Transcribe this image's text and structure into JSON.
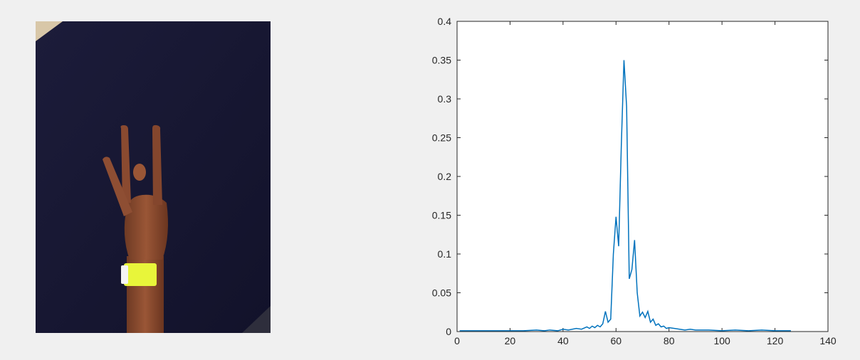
{
  "photo": {
    "subject": "hand-gesture",
    "colors": {
      "backdrop": "#161631",
      "skin": "#8a4a30",
      "wristband": "#e8f53a"
    }
  },
  "chart_data": {
    "type": "line",
    "title": "",
    "xlabel": "",
    "ylabel": "",
    "xlim": [
      0,
      140
    ],
    "ylim": [
      0,
      0.4
    ],
    "xticks": [
      0,
      20,
      40,
      60,
      80,
      100,
      120,
      140
    ],
    "yticks": [
      0,
      0.05,
      0.1,
      0.15,
      0.2,
      0.25,
      0.3,
      0.35,
      0.4
    ],
    "xtick_labels": [
      "0",
      "20",
      "40",
      "60",
      "80",
      "100",
      "120",
      "140"
    ],
    "ytick_labels": [
      "0",
      "0.05",
      "0.1",
      "0.15",
      "0.2",
      "0.25",
      "0.3",
      "0.35",
      "0.4"
    ],
    "grid": false,
    "legend": "none",
    "line_color": "#0072bd",
    "series": [
      {
        "x": [
          1,
          5,
          10,
          15,
          20,
          25,
          30,
          33,
          35,
          38,
          40,
          42,
          45,
          47,
          49,
          50,
          51,
          52,
          53,
          54,
          55,
          56,
          57,
          58,
          59,
          60,
          61,
          62,
          63,
          64,
          65,
          66,
          67,
          68,
          69,
          70,
          71,
          72,
          73,
          74,
          75,
          76,
          77,
          78,
          79,
          80,
          82,
          84,
          86,
          88,
          90,
          95,
          100,
          105,
          110,
          115,
          120,
          125,
          126
        ],
        "y": [
          0.001,
          0.001,
          0.001,
          0.001,
          0.001,
          0.001,
          0.002,
          0.001,
          0.002,
          0.001,
          0.003,
          0.002,
          0.004,
          0.003,
          0.006,
          0.004,
          0.007,
          0.005,
          0.008,
          0.006,
          0.01,
          0.026,
          0.012,
          0.016,
          0.1,
          0.148,
          0.11,
          0.24,
          0.35,
          0.29,
          0.068,
          0.08,
          0.118,
          0.05,
          0.02,
          0.025,
          0.018,
          0.026,
          0.012,
          0.016,
          0.008,
          0.01,
          0.006,
          0.007,
          0.004,
          0.005,
          0.004,
          0.003,
          0.002,
          0.003,
          0.002,
          0.002,
          0.001,
          0.002,
          0.001,
          0.002,
          0.001,
          0.001,
          0.001
        ]
      }
    ]
  }
}
